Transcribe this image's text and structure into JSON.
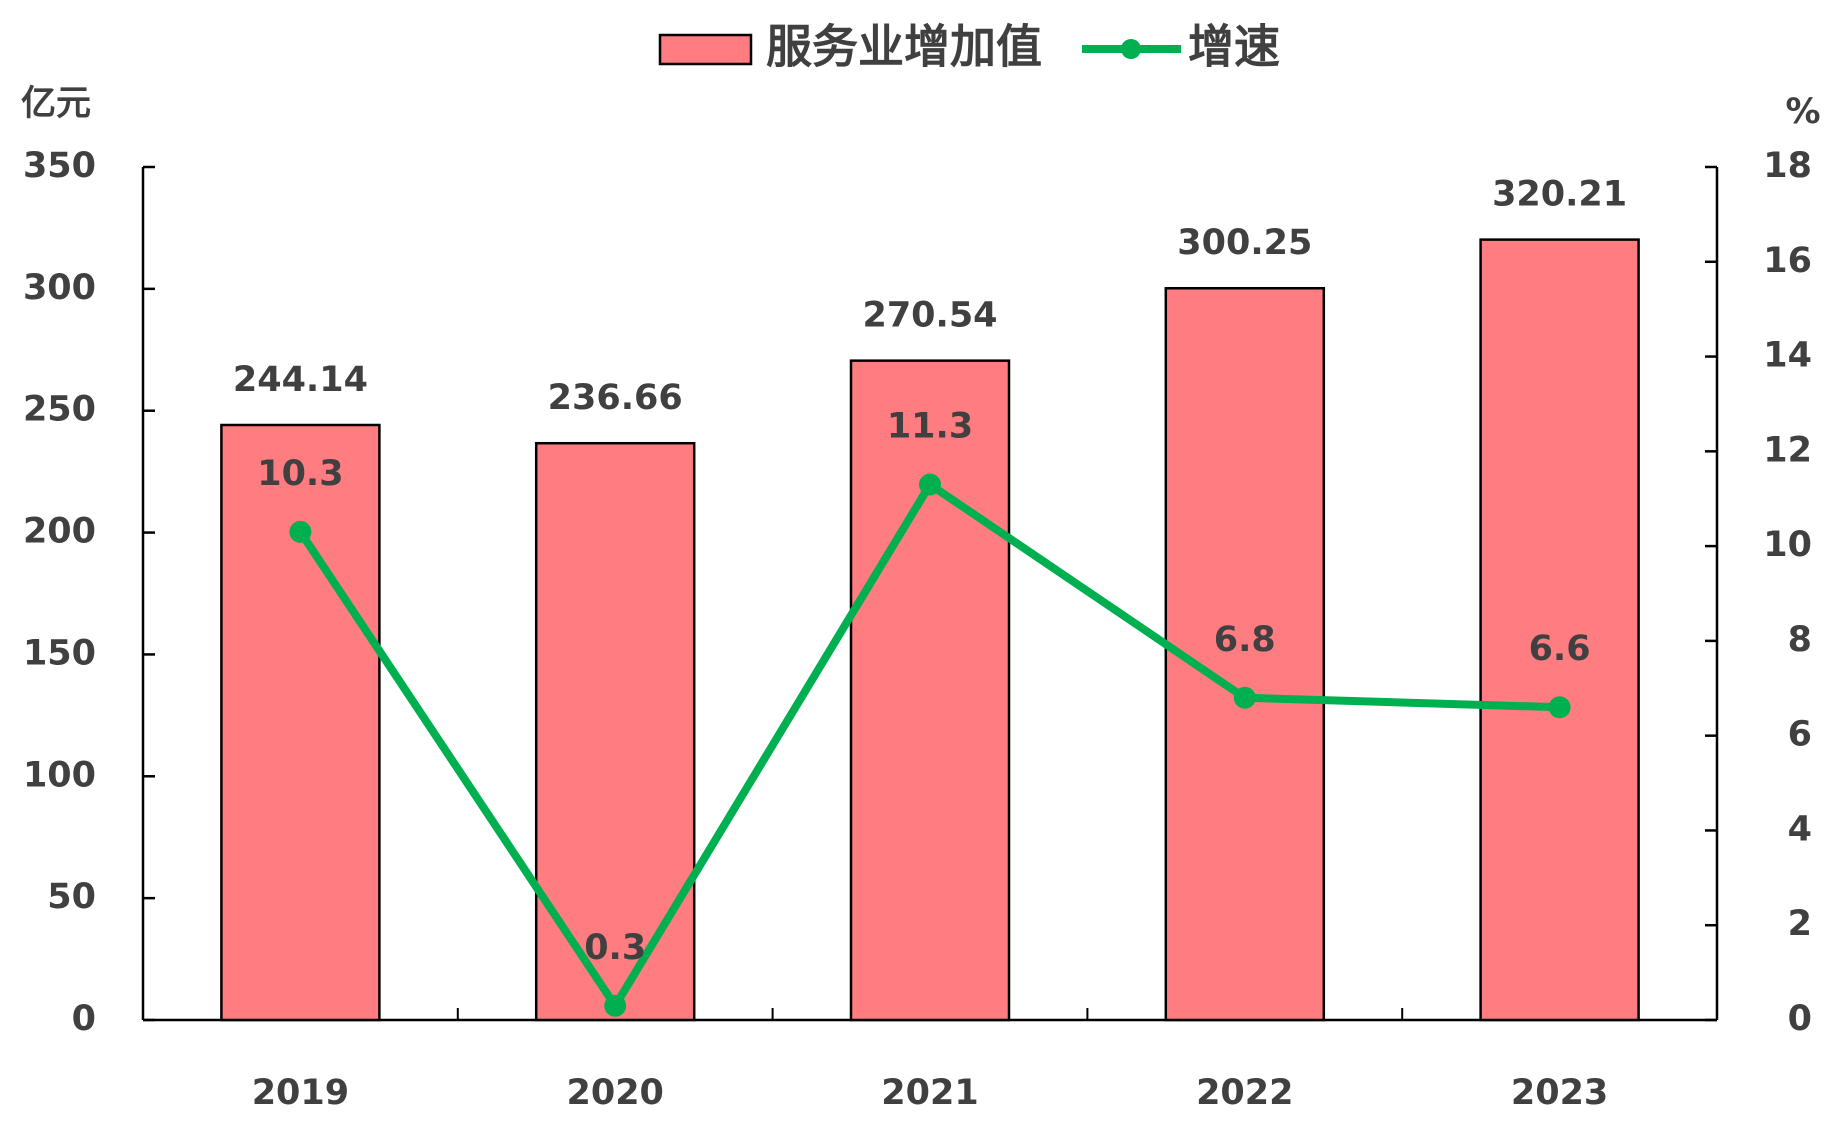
{
  "chart_data": {
    "type": "bar",
    "y_label": "亿元",
    "y2_label": "%",
    "categories": [
      "2019",
      "2020",
      "2021",
      "2022",
      "2023"
    ],
    "series": [
      {
        "name": "服务业增加值",
        "type": "bar",
        "color": "#ff7c80",
        "values": [
          244.14,
          236.66,
          270.54,
          300.25,
          320.21
        ]
      },
      {
        "name": "增速",
        "type": "line",
        "axis": "y2",
        "color": "#00b050",
        "values": [
          10.3,
          0.3,
          11.3,
          6.8,
          6.6
        ]
      }
    ],
    "ylim": [
      0,
      350
    ],
    "yticks": [
      0,
      50,
      100,
      150,
      200,
      250,
      300,
      350
    ],
    "y2lim": [
      0,
      18
    ],
    "y2ticks": [
      0,
      2,
      4,
      6,
      8,
      10,
      12,
      14,
      16,
      18
    ],
    "legend": "top"
  }
}
